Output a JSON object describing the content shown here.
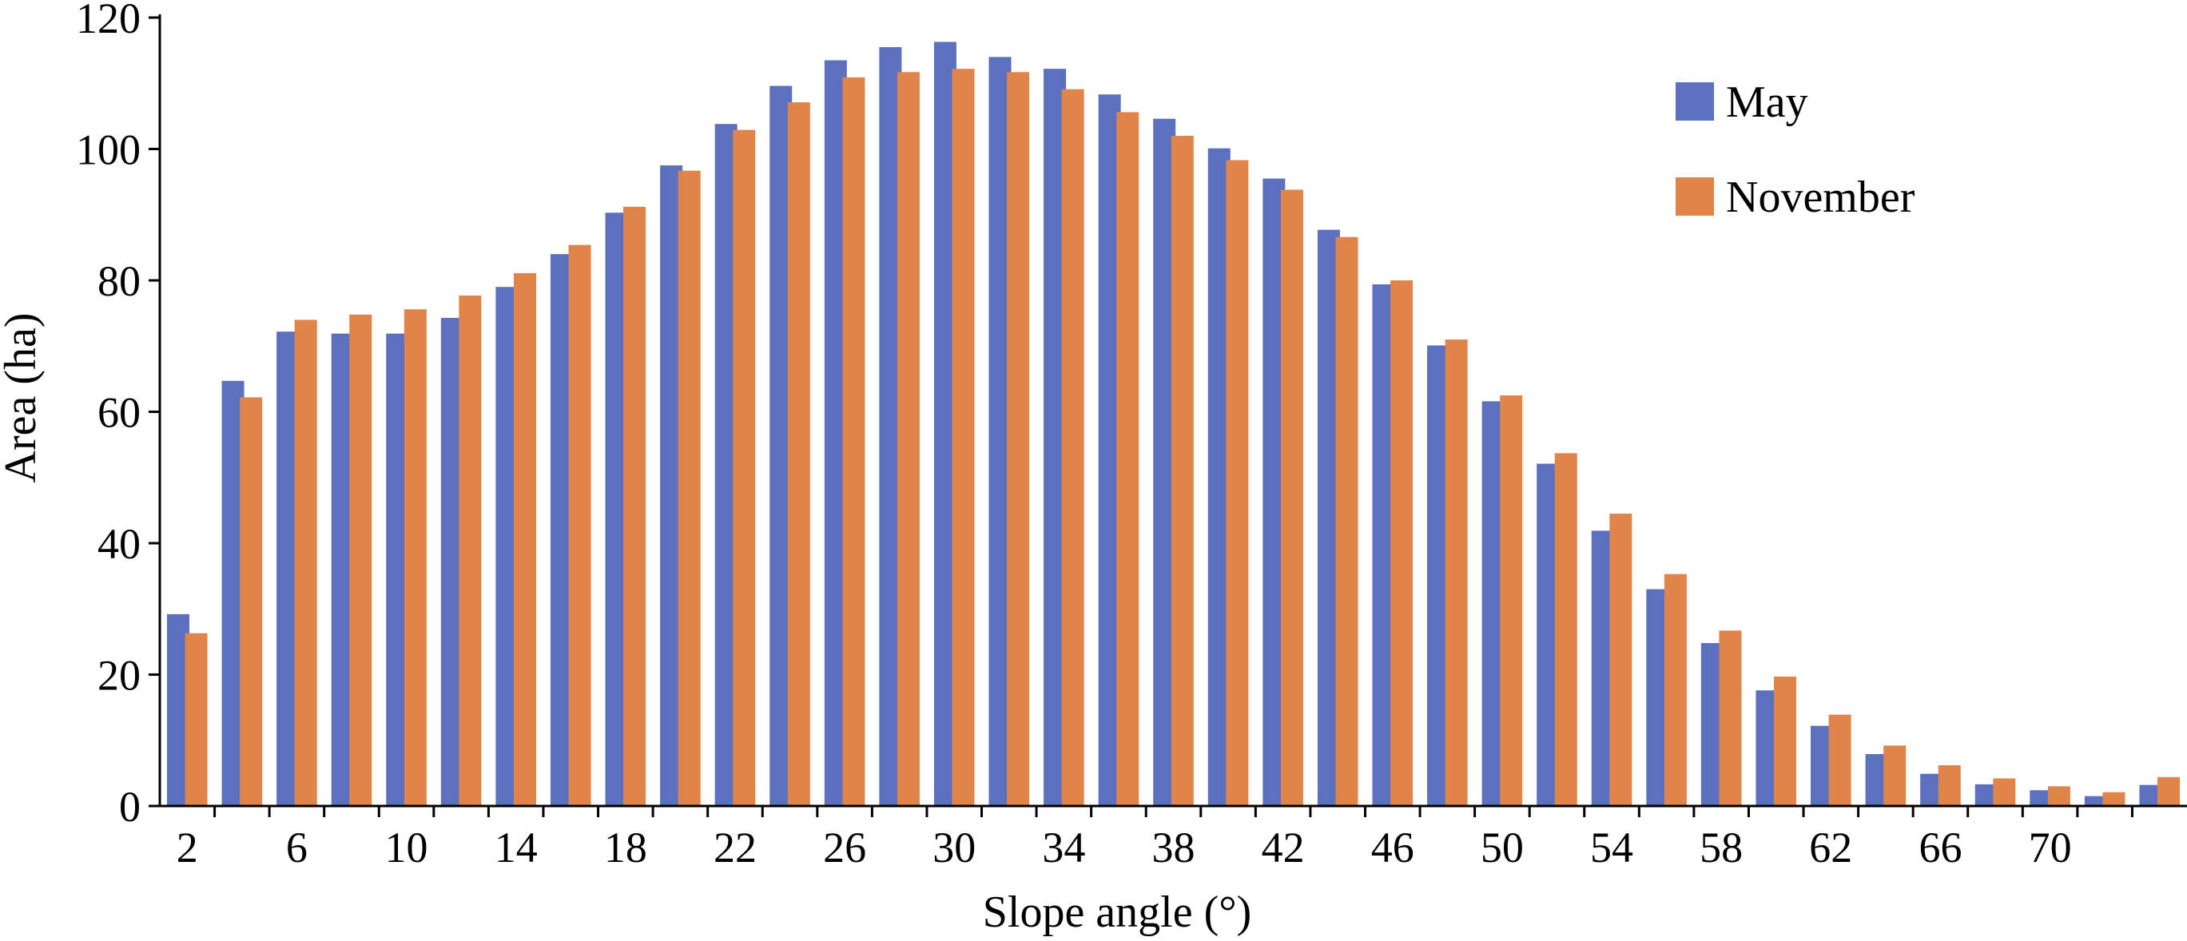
{
  "chart_data": {
    "type": "bar",
    "xlabel": "Slope angle (°)",
    "ylabel": "Area (ha)",
    "ylim": [
      0,
      120
    ],
    "yticks": [
      0,
      20,
      40,
      60,
      80,
      100,
      120
    ],
    "x": [
      1,
      2,
      3,
      4,
      5,
      6,
      7,
      8,
      9,
      10,
      11,
      12,
      13,
      14,
      15,
      16,
      17,
      18,
      19,
      20,
      21,
      22,
      23,
      24,
      25,
      26,
      27,
      28,
      29,
      30,
      31,
      32,
      33,
      34,
      35,
      36,
      37
    ],
    "xtick_labels": [
      "2",
      "6",
      "10",
      "14",
      "18",
      "22",
      "26",
      "30",
      "34",
      "38",
      "42",
      "46",
      "50",
      "54",
      "58",
      "62",
      "66",
      "70"
    ],
    "series": [
      {
        "name": "May",
        "color": "#5B70BE",
        "values": [
          29.2,
          64.7,
          72.2,
          71.9,
          71.9,
          74.3,
          79.0,
          84.0,
          90.3,
          97.5,
          103.8,
          109.6,
          113.5,
          115.5,
          116.3,
          114.0,
          112.2,
          108.3,
          104.6,
          100.1,
          95.5,
          87.7,
          79.4,
          70.1,
          61.6,
          52.1,
          41.9,
          33.0,
          24.8,
          17.6,
          12.2,
          7.9,
          4.9,
          3.3,
          2.4,
          1.5,
          3.2
        ]
      },
      {
        "name": "November",
        "color": "#E08449",
        "values": [
          26.3,
          62.2,
          74.0,
          74.8,
          75.6,
          77.7,
          81.1,
          85.4,
          91.2,
          96.7,
          102.9,
          107.1,
          110.9,
          111.7,
          112.2,
          111.7,
          109.1,
          105.6,
          102.0,
          98.3,
          93.8,
          86.6,
          80.0,
          71.0,
          62.5,
          53.7,
          44.5,
          35.3,
          26.7,
          19.7,
          13.9,
          9.2,
          6.2,
          4.2,
          3.0,
          2.1,
          4.4
        ]
      }
    ],
    "legend_position": "top-right",
    "grid": false
  }
}
